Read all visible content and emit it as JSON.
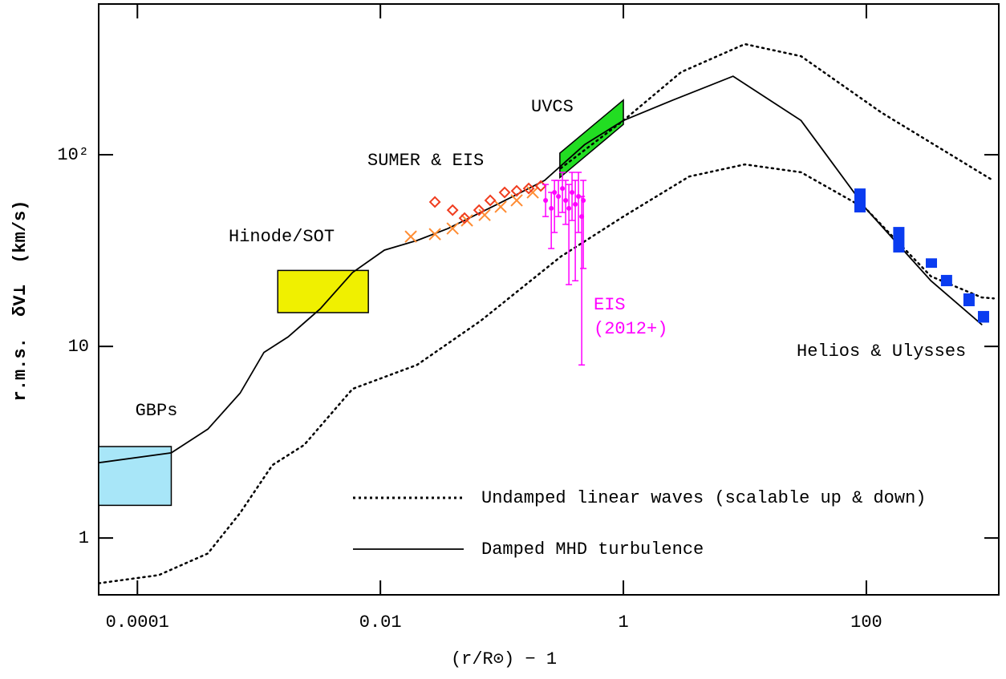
{
  "chart_data": {
    "type": "line",
    "xlabel": "(r/R⊙) − 1",
    "ylabel": "r.m.s.  δV⊥  (km/s)",
    "xscale": "log",
    "yscale": "log",
    "xlim": [
      4.8e-05,
      1230
    ],
    "ylim": [
      0.505,
      612
    ],
    "xticks": [
      0.0001,
      0.01,
      1,
      100
    ],
    "yticks": [
      1,
      10,
      {
        "value": 100,
        "label": "10²"
      }
    ],
    "series": [
      {
        "name": "Undamped linear waves (scalable up & down)",
        "color": "#000000",
        "style": "dotted",
        "x": [
          0.305,
          1.0,
          2.99,
          10,
          29,
          133,
          1120
        ],
        "values": [
          85,
          151,
          270,
          378,
          327,
          166,
          73
        ]
      },
      {
        "name": "Damped MHD turbulence",
        "color": "#000000",
        "style": "solid",
        "x": [
          4.8e-05,
          0.00019,
          0.00038,
          0.0007,
          0.0011,
          0.00174,
          0.0032,
          0.0059,
          0.0108,
          0.02,
          0.036,
          0.091,
          0.225,
          0.48,
          1.0,
          2.56,
          8.0,
          29,
          100,
          340,
          890
        ],
        "values": [
          2.47,
          2.78,
          3.7,
          5.7,
          9.3,
          11.2,
          15.7,
          24.3,
          31.8,
          35.7,
          41.2,
          55,
          73.5,
          113,
          151,
          193,
          257,
          151,
          52,
          22,
          13
        ]
      },
      {
        "color": "#000000",
        "style": "dotted",
        "x": [
          4.8e-05,
          0.00015,
          0.00038,
          0.0007,
          0.00129,
          0.00236,
          0.0059,
          0.02,
          0.067,
          0.305,
          1.0,
          3.48,
          10,
          29,
          100,
          340,
          890,
          1120
        ],
        "values": [
          0.58,
          0.64,
          0.83,
          1.35,
          2.4,
          3.06,
          6,
          8.0,
          13.6,
          29.4,
          47.6,
          77,
          89,
          81,
          52,
          23.2,
          18,
          17.8
        ]
      }
    ],
    "boxes": [
      {
        "label": "GBPs",
        "color": "#a8e6f8",
        "x": [
          4.8e-05,
          0.00019
        ],
        "y": [
          1.48,
          3.0
        ]
      },
      {
        "label": "Hinode/SOT",
        "color": "#f0f000",
        "x": [
          0.00143,
          0.00796
        ],
        "y": [
          15,
          24.9
        ]
      }
    ],
    "uvcs": {
      "label": "UVCS",
      "color": "#22dd22",
      "x": [
        0.3,
        1.0
      ],
      "low": [
        76,
        144
      ],
      "high": [
        102,
        193
      ]
    },
    "sumer": {
      "label": "SUMER & EIS",
      "crosses": {
        "color": "#ff8c33",
        "x": [
          0.0178,
          0.0281,
          0.0393,
          0.0516,
          0.0721,
          0.0977,
          0.1324,
          0.1795
        ],
        "values": [
          37.4,
          38.5,
          41.2,
          45.4,
          48.5,
          53.5,
          57.8,
          63.6
        ]
      },
      "diamonds": {
        "color": "#f03c1e",
        "x": [
          0.0281,
          0.0393,
          0.0493,
          0.0649,
          0.0802,
          0.1054,
          0.1324,
          0.1663,
          0.209
        ],
        "values": [
          56.7,
          51.4,
          46.7,
          51.4,
          57.8,
          63.6,
          64.8,
          66.7,
          68.7
        ]
      }
    },
    "eis": {
      "label": [
        "EIS",
        "(2012+)"
      ],
      "color": "#ff00ff",
      "x": [
        0.229,
        0.255,
        0.271,
        0.292,
        0.315,
        0.335,
        0.356,
        0.378,
        0.402,
        0.427,
        0.454,
        0.468
      ],
      "values": [
        57.8,
        52.5,
        63.6,
        60.6,
        66.7,
        57.8,
        52.5,
        63.6,
        55.1,
        60.6,
        47.6,
        57.8
      ],
      "low": [
        47.6,
        32.4,
        39.3,
        47.6,
        50.0,
        43.3,
        21.0,
        45.4,
        22.0,
        39.3,
        8.0,
        25.5
      ],
      "high": [
        70.0,
        63.6,
        73.5,
        73.5,
        80.9,
        73.5,
        70.0,
        80.9,
        73.5,
        80.9,
        60.6,
        73.5
      ]
    },
    "helios": {
      "label": "Helios & Ulysses",
      "color": "#0a3cf0",
      "x": [
        88.6,
        185,
        343,
        457,
        700,
        921
      ],
      "low": [
        50,
        30.9,
        25.7,
        20.6,
        16.2,
        13.3
      ],
      "high": [
        66.7,
        42,
        28.8,
        23.6,
        18.9,
        15.3
      ]
    }
  }
}
